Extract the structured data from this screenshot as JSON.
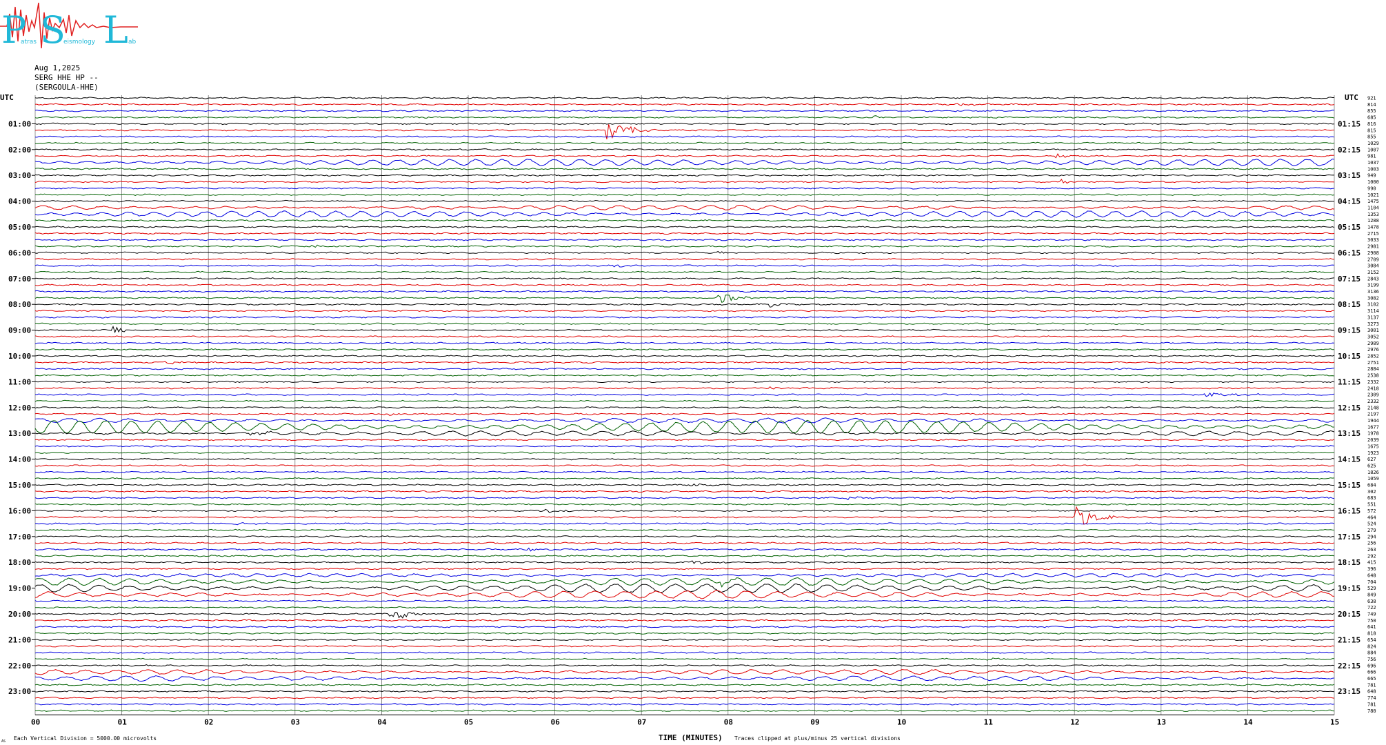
{
  "header": {
    "date": "Aug 1,2025",
    "channel": "SERG HHE HP --",
    "station": "(SERGOULA-HHE)"
  },
  "logo": {
    "letters": [
      "P",
      "S",
      "L"
    ],
    "small_text": [
      "atras",
      "eismology",
      "ab"
    ]
  },
  "footer": {
    "vertical_division": "Each Vertical Division = 5000.00 microvolts",
    "clip_note": "Traces clipped at plus/minus 25 vertical divisions",
    "corner_mark": "AS"
  },
  "colors": {
    "trace_cycle": [
      "#000000",
      "#e00000",
      "#0000e0",
      "#006000"
    ],
    "grid": "#7a7a7a",
    "logo": "#20b8d8",
    "logo_red": "#e02020"
  },
  "chart_data": {
    "type": "line",
    "title": "SERG HHE HP --",
    "xlabel": "TIME (MINUTES)",
    "x_ticks": [
      "00",
      "01",
      "02",
      "03",
      "04",
      "05",
      "06",
      "07",
      "08",
      "09",
      "10",
      "11",
      "12",
      "13",
      "14",
      "15"
    ],
    "xlim": [
      0,
      15
    ],
    "left_axis_title": "UTC",
    "right_axis_title": "UTC",
    "left_labels": [
      "01:00",
      "02:00",
      "03:00",
      "04:00",
      "05:00",
      "06:00",
      "07:00",
      "08:00",
      "09:00",
      "10:00",
      "11:00",
      "12:00",
      "13:00",
      "14:00",
      "15:00",
      "16:00",
      "17:00",
      "18:00",
      "19:00",
      "20:00",
      "21:00",
      "22:00",
      "23:00"
    ],
    "right_labels": [
      "01:15",
      "02:15",
      "03:15",
      "04:15",
      "05:15",
      "06:15",
      "07:15",
      "08:15",
      "09:15",
      "10:15",
      "11:15",
      "12:15",
      "13:15",
      "14:15",
      "15:15",
      "16:15",
      "17:15",
      "18:15",
      "19:15",
      "20:15",
      "21:15",
      "22:15",
      "23:15"
    ],
    "trace_count": 96,
    "trace_interval_minutes": 15,
    "rms_values": [
      921,
      814,
      855,
      685,
      816,
      815,
      855,
      1029,
      1007,
      981,
      1037,
      1003,
      949,
      1000,
      990,
      1021,
      1475,
      1104,
      1353,
      1288,
      1478,
      2715,
      3033,
      2981,
      2908,
      2709,
      3084,
      3152,
      2843,
      3199,
      3136,
      3082,
      3102,
      3114,
      3137,
      3273,
      3001,
      3052,
      2989,
      2976,
      2852,
      2751,
      2884,
      2538,
      2332,
      2418,
      2309,
      2332,
      2148,
      2197,
      1944,
      1677,
      1978,
      2039,
      1675,
      1923,
      627,
      625,
      1826,
      1059,
      684,
      302,
      683,
      551,
      572,
      464,
      524,
      279,
      294,
      256,
      263,
      292,
      415,
      396,
      648,
      704,
      529,
      849,
      638,
      722,
      749,
      750,
      641,
      818,
      654,
      824,
      884,
      756,
      696,
      666,
      665,
      781,
      648,
      774,
      781,
      780
    ],
    "events": [
      {
        "trace": 1,
        "minute": 10.65,
        "amplitude": 3,
        "duration_min": 0.35
      },
      {
        "trace": 3,
        "minute": 9.7,
        "amplitude": 3,
        "duration_min": 0.15
      },
      {
        "trace": 5,
        "minute": 6.6,
        "amplitude": 16,
        "duration_min": 0.6
      },
      {
        "trace": 9,
        "minute": 11.8,
        "amplitude": 4,
        "duration_min": 0.25
      },
      {
        "trace": 13,
        "minute": 11.85,
        "amplitude": 4,
        "duration_min": 0.15
      },
      {
        "trace": 23,
        "minute": 3.2,
        "amplitude": 2,
        "duration_min": 0.5
      },
      {
        "trace": 24,
        "minute": 7.9,
        "amplitude": 4,
        "duration_min": 0.1
      },
      {
        "trace": 26,
        "minute": 6.7,
        "amplitude": 2,
        "duration_min": 0.4
      },
      {
        "trace": 31,
        "minute": 7.9,
        "amplitude": 9,
        "duration_min": 0.5
      },
      {
        "trace": 32,
        "minute": 8.5,
        "amplitude": 4,
        "duration_min": 0.4
      },
      {
        "trace": 32,
        "minute": 13.8,
        "amplitude": 4,
        "duration_min": 0.2
      },
      {
        "trace": 36,
        "minute": 0.9,
        "amplitude": 6,
        "duration_min": 0.4
      },
      {
        "trace": 41,
        "minute": 1.5,
        "amplitude": 2,
        "duration_min": 0.6
      },
      {
        "trace": 45,
        "minute": 8.5,
        "amplitude": 2,
        "duration_min": 0.8
      },
      {
        "trace": 46,
        "minute": 13.5,
        "amplitude": 3,
        "duration_min": 1.2
      },
      {
        "trace": 49,
        "minute": 4.1,
        "amplitude": 3,
        "duration_min": 0.4
      },
      {
        "trace": 52,
        "minute": 2.5,
        "amplitude": 3,
        "duration_min": 0.8
      },
      {
        "trace": 56,
        "minute": 7.7,
        "amplitude": 2,
        "duration_min": 0.5
      },
      {
        "trace": 60,
        "minute": 7.6,
        "amplitude": 2,
        "duration_min": 0.4
      },
      {
        "trace": 61,
        "minute": 11.9,
        "amplitude": 2,
        "duration_min": 1.0
      },
      {
        "trace": 62,
        "minute": 9.4,
        "amplitude": 2,
        "duration_min": 0.5
      },
      {
        "trace": 64,
        "minute": 5.9,
        "amplitude": 3,
        "duration_min": 0.5
      },
      {
        "trace": 64,
        "minute": 13.2,
        "amplitude": 2,
        "duration_min": 0.6
      },
      {
        "trace": 65,
        "minute": 12.0,
        "amplitude": 18,
        "duration_min": 0.6
      },
      {
        "trace": 66,
        "minute": 2.3,
        "amplitude": 2,
        "duration_min": 0.5
      },
      {
        "trace": 70,
        "minute": 5.7,
        "amplitude": 2,
        "duration_min": 0.4
      },
      {
        "trace": 72,
        "minute": 7.6,
        "amplitude": 2,
        "duration_min": 0.8
      },
      {
        "trace": 75,
        "minute": 7.9,
        "amplitude": 4,
        "duration_min": 0.5
      },
      {
        "trace": 78,
        "minute": 11.2,
        "amplitude": 2,
        "duration_min": 0.4
      },
      {
        "trace": 80,
        "minute": 4.1,
        "amplitude": 12,
        "duration_min": 0.6
      },
      {
        "trace": 87,
        "minute": 11.0,
        "amplitude": 2,
        "duration_min": 0.5
      }
    ],
    "long_period_traces": [
      {
        "trace": 10,
        "amplitude": 4,
        "period_min": 0.3
      },
      {
        "trace": 18,
        "amplitude": 4,
        "period_min": 0.3
      },
      {
        "trace": 17,
        "amplitude": 3,
        "period_min": 0.35
      },
      {
        "trace": 51,
        "amplitude": 9,
        "period_min": 0.3
      },
      {
        "trace": 50,
        "amplitude": 3,
        "period_min": 0.35
      },
      {
        "trace": 52,
        "amplitude": 3,
        "period_min": 0.35
      },
      {
        "trace": 75,
        "amplitude": 5,
        "period_min": 0.35
      },
      {
        "trace": 76,
        "amplitude": 6,
        "period_min": 0.35
      },
      {
        "trace": 77,
        "amplitude": 5,
        "period_min": 0.35
      },
      {
        "trace": 74,
        "amplitude": 2,
        "period_min": 0.3
      },
      {
        "trace": 89,
        "amplitude": 3,
        "period_min": 0.35
      },
      {
        "trace": 90,
        "amplitude": 3,
        "period_min": 0.35
      }
    ],
    "grid": true
  }
}
